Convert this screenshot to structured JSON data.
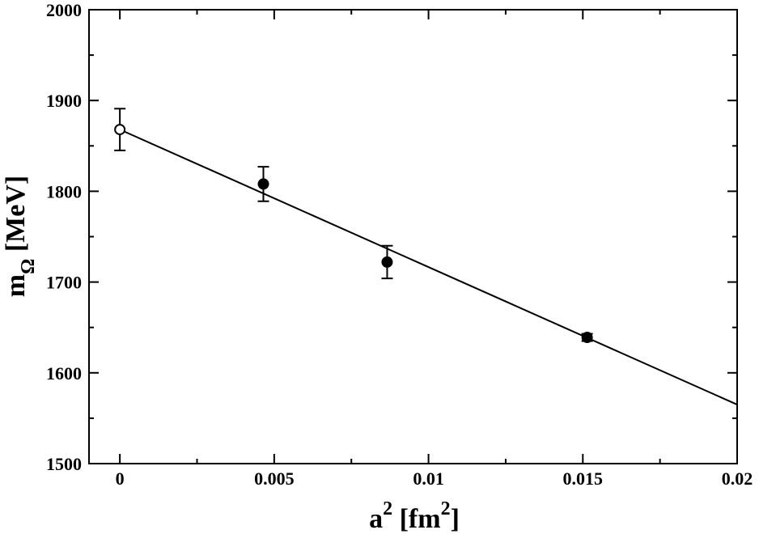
{
  "chart_data": {
    "type": "scatter",
    "title": "",
    "xlabel": {
      "base": "a",
      "sup": "2",
      "mid": " [fm",
      "sup2": "2",
      "end": "]"
    },
    "ylabel": {
      "base": "m",
      "sub": "Ω",
      "rest": " [MeV]"
    },
    "xlim": [
      -0.001,
      0.02
    ],
    "ylim": [
      1500,
      2000
    ],
    "x_ticks": [
      0,
      0.005,
      0.01,
      0.015,
      0.02
    ],
    "x_tick_labels": [
      "0",
      "0.005",
      "0.01",
      "0.015",
      "0.02"
    ],
    "y_ticks": [
      1500,
      1600,
      1700,
      1800,
      1900,
      2000
    ],
    "y_tick_labels": [
      "1500",
      "1600",
      "1700",
      "1800",
      "1900",
      "2000"
    ],
    "x_minor_step": 0.0025,
    "y_minor_step": 50,
    "grid": false,
    "series": [
      {
        "marker": "filled-circle",
        "points": [
          {
            "x": 0.00465,
            "y": 1808,
            "err": 19
          },
          {
            "x": 0.00866,
            "y": 1722,
            "err": 18
          },
          {
            "x": 0.01514,
            "y": 1639,
            "err": 4
          }
        ]
      },
      {
        "marker": "open-circle",
        "points": [
          {
            "x": 0.0,
            "y": 1868,
            "err": 23
          }
        ]
      }
    ],
    "fit_line": {
      "x": [
        0.0,
        0.02
      ],
      "y": [
        1868,
        1565
      ]
    }
  }
}
